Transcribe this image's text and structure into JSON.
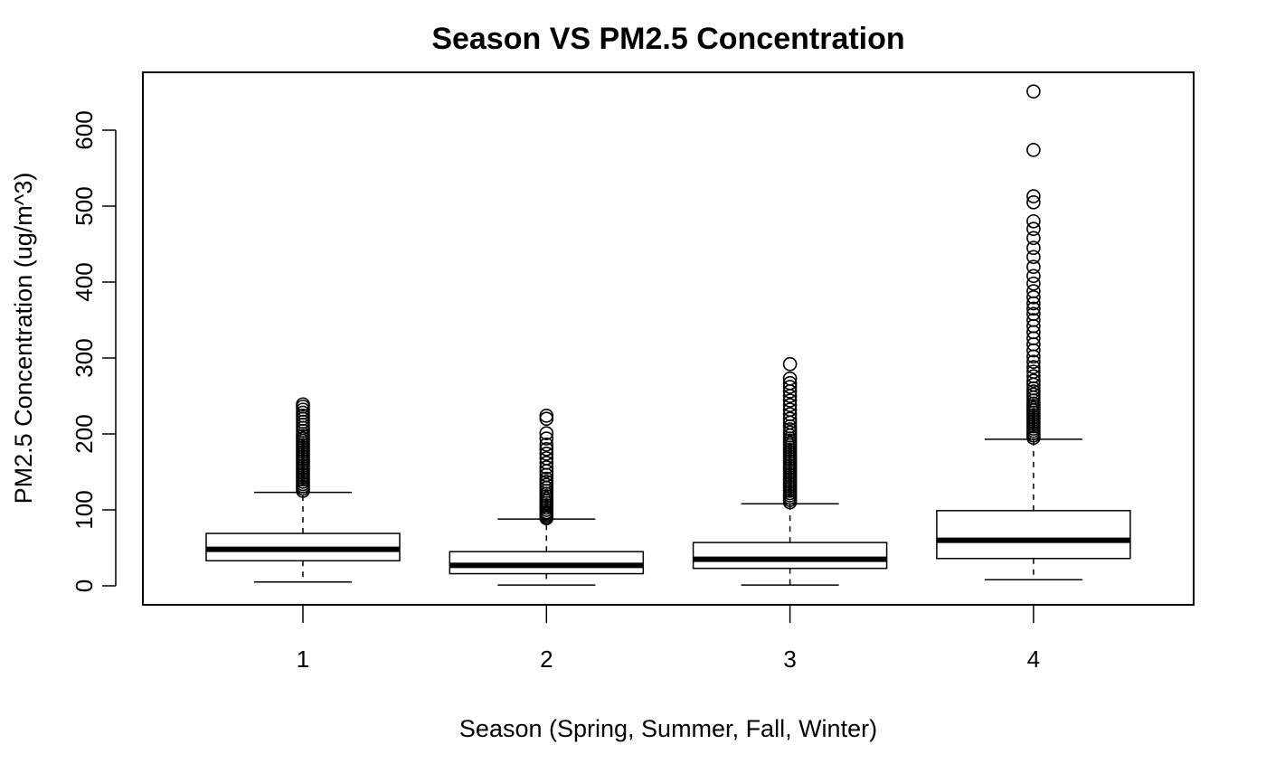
{
  "chart_data": {
    "type": "boxplot",
    "title": "Season VS PM2.5 Concentration",
    "xlabel": "Season (Spring, Summer, Fall, Winter)",
    "ylabel": "PM2.5 Concentration (ug/m^3)",
    "categories": [
      "1",
      "2",
      "3",
      "4"
    ],
    "ylim": [
      -25,
      675
    ],
    "yticks": [
      0,
      100,
      200,
      300,
      400,
      500,
      600
    ],
    "grid": false,
    "boxes": [
      {
        "category": "1",
        "whisker_low": 5,
        "q1": 33,
        "median": 48,
        "q3": 69,
        "whisker_high": 123,
        "outliers": [
          125,
          128,
          131,
          134,
          137,
          140,
          143,
          146,
          149,
          152,
          155,
          158,
          161,
          164,
          167,
          170,
          173,
          176,
          179,
          182,
          185,
          188,
          191,
          194,
          197,
          200,
          204,
          208,
          212,
          216,
          220,
          224,
          228,
          232,
          236,
          239
        ]
      },
      {
        "category": "2",
        "whisker_low": 1,
        "q1": 16,
        "median": 27,
        "q3": 45,
        "whisker_high": 88,
        "outliers": [
          89,
          91,
          93,
          95,
          97,
          100,
          103,
          106,
          109,
          112,
          115,
          118,
          121,
          125,
          129,
          133,
          137,
          141,
          146,
          151,
          156,
          162,
          168,
          174,
          180,
          186,
          194,
          201,
          220,
          224
        ]
      },
      {
        "category": "3",
        "whisker_low": 1,
        "q1": 23,
        "median": 35,
        "q3": 57,
        "whisker_high": 108,
        "outliers": [
          110,
          113,
          116,
          119,
          122,
          125,
          128,
          131,
          134,
          137,
          140,
          143,
          146,
          149,
          152,
          155,
          158,
          161,
          164,
          167,
          170,
          173,
          176,
          179,
          182,
          185,
          188,
          191,
          194,
          198,
          202,
          206,
          210,
          215,
          220,
          226,
          232,
          238,
          244,
          250,
          256,
          262,
          267,
          273,
          292
        ]
      },
      {
        "category": "4",
        "whisker_low": 8,
        "q1": 36,
        "median": 60,
        "q3": 99,
        "whisker_high": 193,
        "outliers": [
          195,
          198,
          201,
          204,
          207,
          210,
          213,
          216,
          219,
          222,
          225,
          228,
          231,
          234,
          237,
          240,
          244,
          248,
          252,
          256,
          260,
          265,
          270,
          276,
          282,
          288,
          295,
          302,
          310,
          318,
          326,
          334,
          342,
          350,
          358,
          365,
          372,
          380,
          388,
          398,
          408,
          420,
          433,
          445,
          458,
          470,
          480,
          505,
          513,
          574,
          651
        ]
      }
    ]
  }
}
